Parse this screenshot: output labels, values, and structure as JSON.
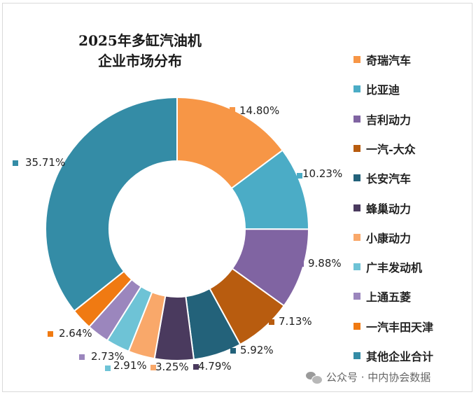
{
  "chart_data": {
    "type": "pie",
    "subtype": "donut",
    "title": "2025年多缸汽油机企业市场分布",
    "title_lines": [
      "2025年多缸汽油机",
      "企业市场分布"
    ],
    "legend_position": "right",
    "categories": [
      "奇瑞汽车",
      "比亚迪",
      "吉利动力",
      "一汽-大众",
      "长安汽车",
      "蜂巢动力",
      "小康动力",
      "广丰发动机",
      "上通五菱",
      "一汽丰田天津",
      "其他企业合计"
    ],
    "values": [
      14.8,
      10.23,
      9.88,
      7.13,
      5.92,
      4.79,
      3.25,
      2.91,
      2.73,
      2.64,
      35.71
    ],
    "labels": [
      "14.80%",
      "10.23%",
      "9.88%",
      "7.13%",
      "5.92%",
      "4.79%",
      "3.25%",
      "2.91%",
      "2.73%",
      "2.64%",
      "35.71%"
    ],
    "colors": [
      "#f79646",
      "#4bacc6",
      "#8064a2",
      "#b85c0f",
      "#23627a",
      "#4a3a5e",
      "#f9a86a",
      "#6ec3d6",
      "#9b86bd",
      "#f07a12",
      "#348ca6"
    ]
  },
  "watermark": {
    "text": "公众号 · 中内协会数据",
    "icon": "wechat-icon"
  }
}
